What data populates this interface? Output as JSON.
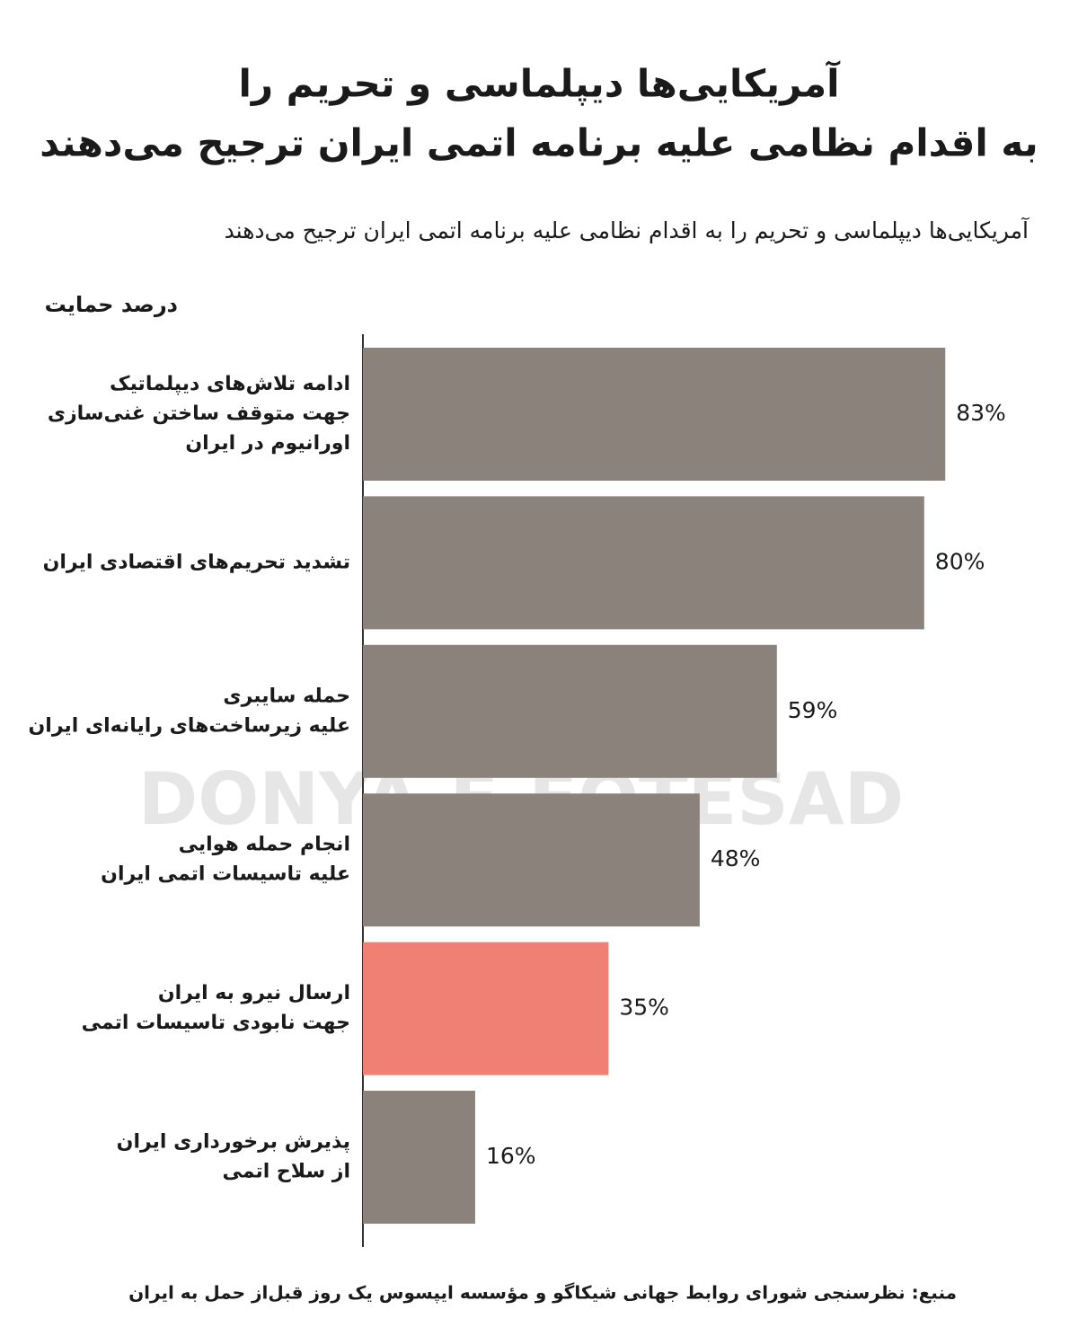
{
  "chart_data": {
    "type": "bar",
    "orientation": "horizontal",
    "title": [
      "آمریکایی‌ها دیپلماسی و تحریم را",
      "به اقدام نظامی علیه برنامه اتمی ایران ترجیح می‌دهند"
    ],
    "subtitle": "آمریکایی‌ها دیپلماسی و تحریم را به اقدام نظامی علیه برنامه اتمی ایران ترجیح می‌دهند",
    "axis_label": "درصد حمایت",
    "categories": [
      [
        "ادامه تلاش‌های دیپلماتیک",
        "جهت متوقف ساختن غنی‌سازی",
        "اورانیوم در ایران"
      ],
      [
        "تشدید تحریم‌های اقتصادی ایران"
      ],
      [
        "حمله سایبری",
        "علیه زیرساخت‌های رایانه‌ای ایران"
      ],
      [
        "انجام حمله هوایی",
        "علیه تاسیسات اتمی ایران"
      ],
      [
        "ارسال نیرو به ایران",
        "جهت نابودی تاسیسات اتمی"
      ],
      [
        "پذیرش برخورداری ایران",
        "از سلاح اتمی"
      ]
    ],
    "values": [
      83,
      80,
      59,
      48,
      35,
      16
    ],
    "value_labels": [
      "83%",
      "80%",
      "59%",
      "48%",
      "35%",
      "16%"
    ],
    "colors": [
      "#8a827b",
      "#8a827b",
      "#8a827b",
      "#8a827b",
      "#f08074",
      "#8a827b"
    ],
    "xlim": [
      0,
      100
    ],
    "watermark": "DONYA-E-EQTESAD",
    "source": "منبع: نظرسنجی شورای روابط جهانی شیکاگو و مؤسسه ایپسوس یک روز قبل‌از حمل به ایران"
  }
}
